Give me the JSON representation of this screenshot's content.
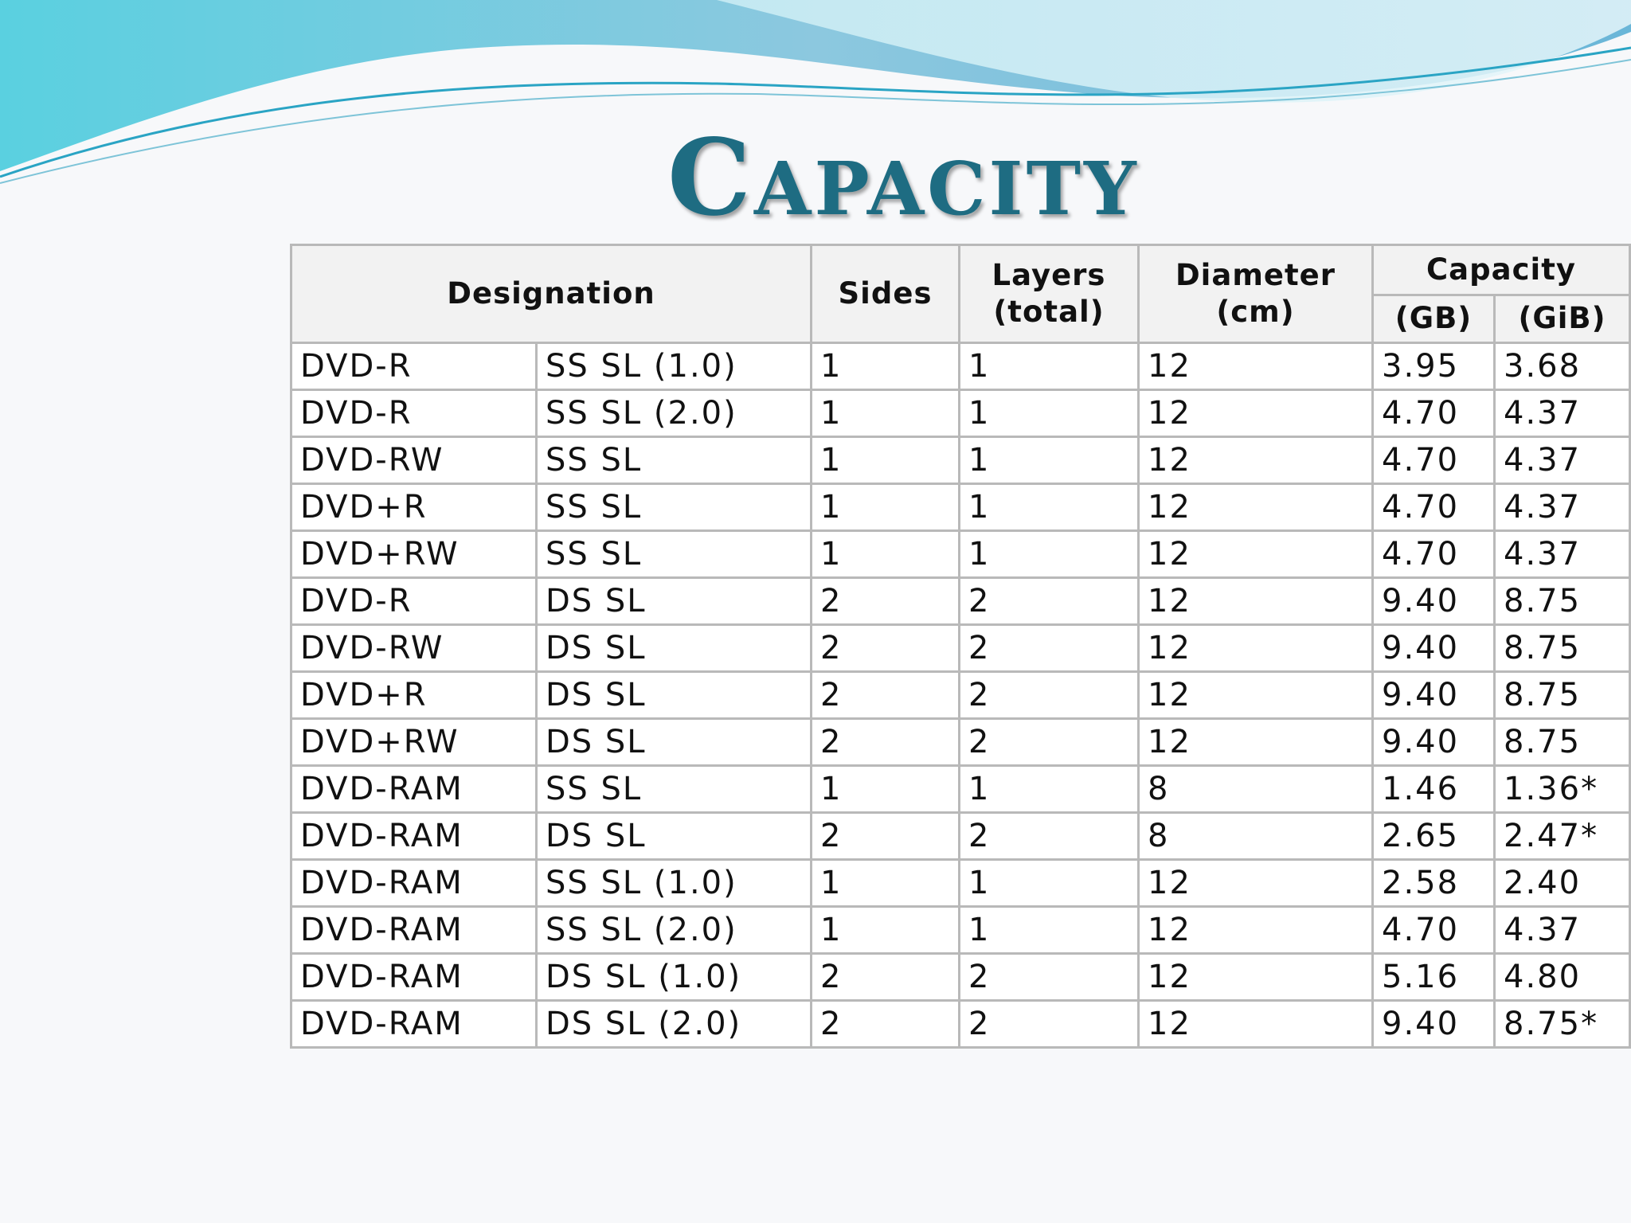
{
  "slide": {
    "title": "Capacity"
  },
  "table": {
    "headers": {
      "designation": "Designation",
      "sides": "Sides",
      "layers": [
        "Layers",
        "(total)"
      ],
      "diameter": [
        "Diameter",
        "(cm)"
      ],
      "capacity": "Capacity",
      "gb": "(GB)",
      "gib": "(GiB)"
    },
    "rows": [
      [
        "DVD-R",
        "SS SL (1.0)",
        "1",
        "1",
        "12",
        "3.95",
        "3.68"
      ],
      [
        "DVD-R",
        "SS SL (2.0)",
        "1",
        "1",
        "12",
        "4.70",
        "4.37"
      ],
      [
        "DVD-RW",
        "SS SL",
        "1",
        "1",
        "12",
        "4.70",
        "4.37"
      ],
      [
        "DVD+R",
        "SS SL",
        "1",
        "1",
        "12",
        "4.70",
        "4.37"
      ],
      [
        "DVD+RW",
        "SS SL",
        "1",
        "1",
        "12",
        "4.70",
        "4.37"
      ],
      [
        "DVD-R",
        "DS SL",
        "2",
        "2",
        "12",
        "9.40",
        "8.75"
      ],
      [
        "DVD-RW",
        "DS SL",
        "2",
        "2",
        "12",
        "9.40",
        "8.75"
      ],
      [
        "DVD+R",
        "DS SL",
        "2",
        "2",
        "12",
        "9.40",
        "8.75"
      ],
      [
        "DVD+RW",
        "DS SL",
        "2",
        "2",
        "12",
        "9.40",
        "8.75"
      ],
      [
        "DVD-RAM",
        "SS SL",
        "1",
        "1",
        "8",
        "1.46",
        "1.36*"
      ],
      [
        "DVD-RAM",
        "DS SL",
        "2",
        "2",
        "8",
        "2.65",
        "2.47*"
      ],
      [
        "DVD-RAM",
        "SS SL (1.0)",
        "1",
        "1",
        "12",
        "2.58",
        "2.40"
      ],
      [
        "DVD-RAM",
        "SS SL (2.0)",
        "1",
        "1",
        "12",
        "4.70",
        "4.37"
      ],
      [
        "DVD-RAM",
        "DS SL (1.0)",
        "2",
        "2",
        "12",
        "5.16",
        "4.80"
      ],
      [
        "DVD-RAM",
        "DS SL (2.0)",
        "2",
        "2",
        "12",
        "9.40",
        "8.75*"
      ]
    ]
  }
}
